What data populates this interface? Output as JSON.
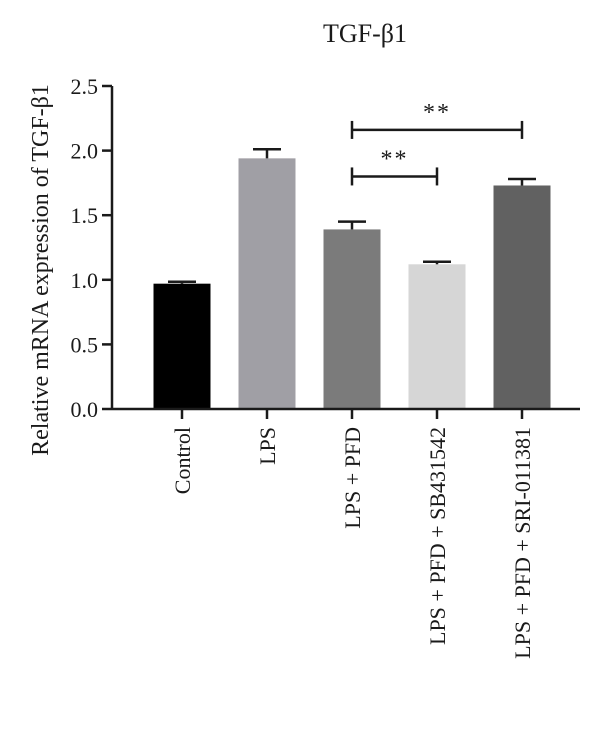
{
  "chart_data": {
    "type": "bar",
    "title": "TGF-β1",
    "xlabel": "",
    "ylabel": "Relative mRNA expression of TGF-β1",
    "ylim": [
      0,
      2.5
    ],
    "yticks": [
      "0.0",
      "0.5",
      "1.0",
      "1.5",
      "2.0",
      "2.5"
    ],
    "ytick_values": [
      0,
      0.5,
      1.0,
      1.5,
      2.0,
      2.5
    ],
    "grid": false,
    "categories": [
      "Control",
      "LPS",
      "LPS + PFD",
      "LPS + PFD + SB431542",
      "LPS + PFD + SRI-011381"
    ],
    "values": [
      0.97,
      1.94,
      1.39,
      1.12,
      1.73
    ],
    "errors": [
      0.015,
      0.07,
      0.06,
      0.02,
      0.05
    ],
    "colors": [
      "#000000",
      "#a09fa5",
      "#7b7b7b",
      "#d6d6d6",
      "#616161"
    ],
    "significance": [
      {
        "from": 2,
        "to": 3,
        "label": "**",
        "y": 1.8
      },
      {
        "from": 2,
        "to": 4,
        "label": "**",
        "y": 2.16
      }
    ]
  }
}
